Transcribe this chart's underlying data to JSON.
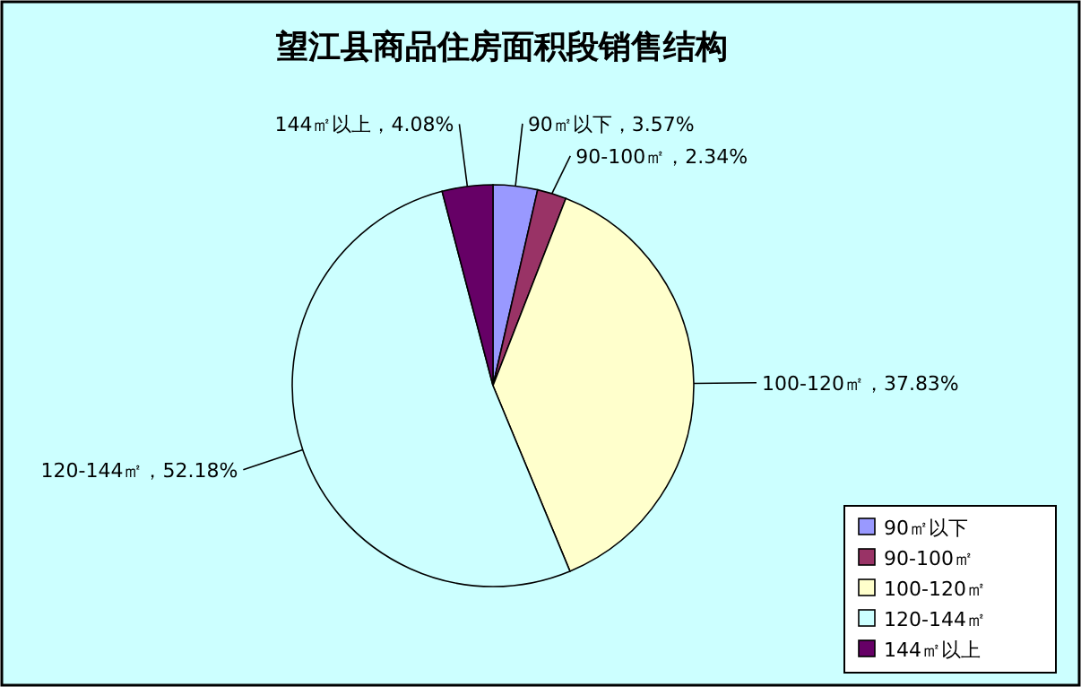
{
  "chart_data": {
    "type": "pie",
    "title": "望江县商品住房面积段销售结构",
    "categories": [
      "90㎡以下",
      "90-100㎡",
      "100-120㎡",
      "120-144㎡",
      "144㎡以上"
    ],
    "values": [
      3.57,
      2.34,
      37.83,
      52.18,
      4.08
    ],
    "colors": [
      "#9999ff",
      "#993366",
      "#ffffcc",
      "#ccffff",
      "#660066"
    ],
    "value_labels": [
      "90㎡以下，3.57%",
      "90-100㎡，2.34%",
      "100-120㎡，37.83%",
      "120-144㎡，52.18%",
      "144㎡以上，4.08%"
    ],
    "legend": "bottom right"
  }
}
